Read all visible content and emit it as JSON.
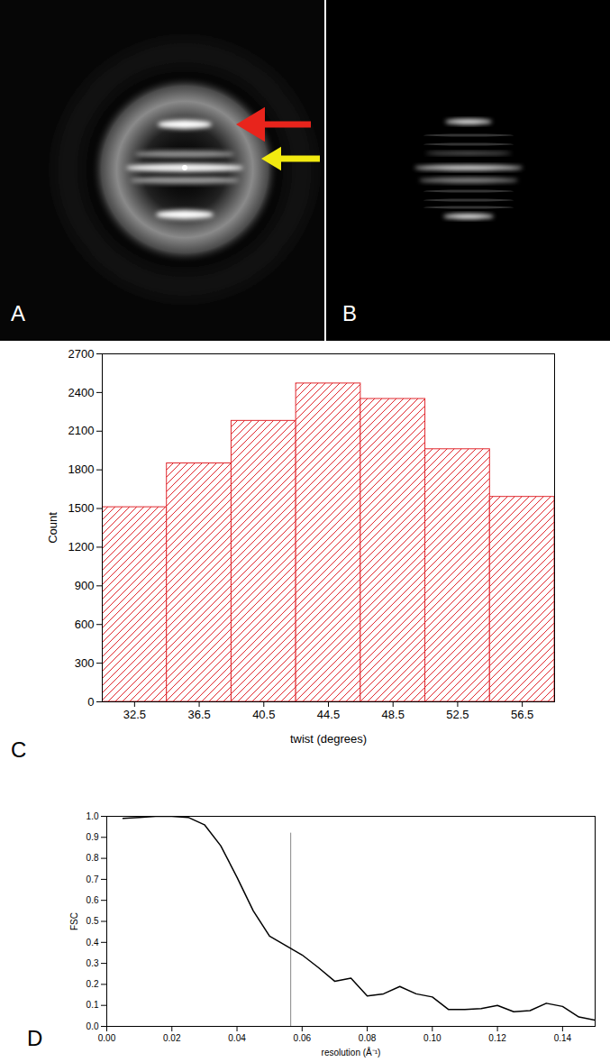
{
  "images": [
    {
      "label": "A"
    },
    {
      "label": "B"
    }
  ],
  "chart_data": [
    {
      "type": "histogram",
      "annotations": [
        "C"
      ],
      "xlabel": "twist (degrees)",
      "ylabel": "Count",
      "bins": [
        30.5,
        34.5,
        38.5,
        42.5,
        46.5,
        50.5,
        54.5,
        58.5
      ],
      "values": [
        1510,
        1850,
        2180,
        2470,
        2350,
        1960,
        1590
      ],
      "color": "#e0282e",
      "xlim": [
        30.5,
        58.5
      ],
      "xticks": [
        32.5,
        36.5,
        40.5,
        44.5,
        48.5,
        52.5,
        56.5
      ],
      "ylim": [
        0,
        2700
      ],
      "yticks": [
        0,
        300,
        600,
        900,
        1200,
        1500,
        1800,
        2100,
        2400,
        2700
      ]
    },
    {
      "type": "line",
      "annotations": [
        "D"
      ],
      "xlabel": "resolution (Å⁻¹)",
      "ylabel": "FSC",
      "x": [
        0.005,
        0.01,
        0.015,
        0.02,
        0.025,
        0.03,
        0.035,
        0.04,
        0.045,
        0.05,
        0.055,
        0.06,
        0.065,
        0.07,
        0.075,
        0.08,
        0.085,
        0.09,
        0.095,
        0.1,
        0.105,
        0.11,
        0.115,
        0.12,
        0.125,
        0.13,
        0.135,
        0.14,
        0.145,
        0.15
      ],
      "values": [
        0.99,
        0.995,
        1.0,
        1.0,
        0.995,
        0.96,
        0.86,
        0.71,
        0.55,
        0.43,
        0.385,
        0.34,
        0.28,
        0.215,
        0.23,
        0.145,
        0.155,
        0.19,
        0.155,
        0.14,
        0.08,
        0.08,
        0.085,
        0.1,
        0.07,
        0.075,
        0.11,
        0.095,
        0.045,
        0.03
      ],
      "color": "#000000",
      "reference_line": {
        "x": 0.0565,
        "y": [
          0,
          0.92
        ]
      },
      "xlim": [
        0,
        0.15
      ],
      "xticks": [
        {
          "value": 0,
          "label": "0.00"
        },
        {
          "value": 0.02,
          "label": "0.02"
        },
        {
          "value": 0.04,
          "label": "0.04"
        },
        {
          "value": 0.06,
          "label": "0.06"
        },
        {
          "value": 0.08,
          "label": "0.08"
        },
        {
          "value": 0.1,
          "label": "0.10"
        },
        {
          "value": 0.12,
          "label": "0.12"
        },
        {
          "value": 0.14,
          "label": "0.14"
        }
      ],
      "ylim": [
        0,
        1.0
      ],
      "yticks": [
        {
          "value": 0,
          "label": "0.0"
        },
        {
          "value": 0.1,
          "label": "0.1"
        },
        {
          "value": 0.2,
          "label": "0.2"
        },
        {
          "value": 0.3,
          "label": "0.3"
        },
        {
          "value": 0.4,
          "label": "0.4"
        },
        {
          "value": 0.5,
          "label": "0.5"
        },
        {
          "value": 0.6,
          "label": "0.6"
        },
        {
          "value": 0.7,
          "label": "0.7"
        },
        {
          "value": 0.8,
          "label": "0.8"
        },
        {
          "value": 0.9,
          "label": "0.9"
        },
        {
          "value": 1.0,
          "label": "1.0"
        }
      ]
    }
  ]
}
